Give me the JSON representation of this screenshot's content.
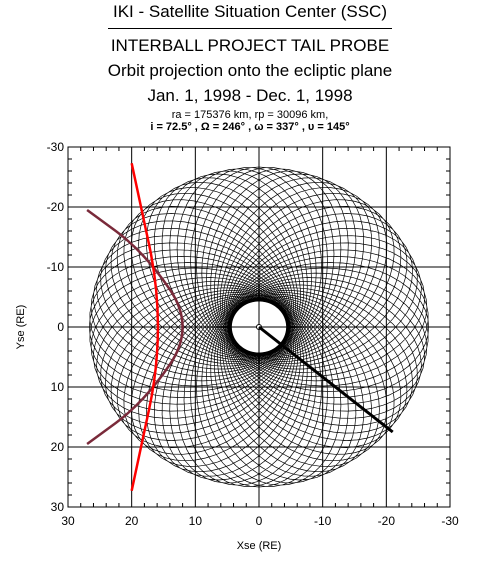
{
  "header": {
    "line1": "IKI - Satellite Situation Center (SSC)",
    "line2": "INTERBALL PROJECT TAIL PROBE",
    "line3": "Orbit projection onto the ecliptic plane",
    "line4": "Jan. 1, 1998 - Dec. 1, 1998",
    "params1": "ra = 175376 km, rp = 30096 km,",
    "params2": "i = 72.5° , Ω = 246° , ω = 337° , υ = 145°"
  },
  "chart_data": {
    "type": "line",
    "xlabel": "Xse (RE)",
    "ylabel": "Yse (RE)",
    "xlim": [
      30,
      -30
    ],
    "ylim": [
      -30,
      30
    ],
    "x_ticks": [
      "30",
      "20",
      "10",
      "0",
      "-10",
      "-20",
      "-30"
    ],
    "y_ticks": [
      "-30",
      "-20",
      "-10",
      "0",
      "10",
      "20",
      "30"
    ],
    "grid": true,
    "colors": {
      "orbit": "#000000",
      "bow_shock": "#ff0000",
      "magnetopause": "#7a2a3a",
      "final_segment": "#000000"
    },
    "series": [
      {
        "kind": "magnetopause",
        "points": [
          [
            27,
            -19.5
          ],
          [
            18,
            -12.5
          ],
          [
            10,
            0
          ],
          [
            18,
            12.5
          ],
          [
            27,
            19.5
          ]
        ]
      },
      {
        "kind": "bow_shock",
        "points": [
          [
            20,
            -27.3
          ],
          [
            14.5,
            0
          ],
          [
            20,
            27.3
          ]
        ]
      },
      {
        "kind": "final_segment",
        "points": [
          [
            0,
            0
          ],
          [
            -21,
            17.5
          ]
        ]
      }
    ]
  }
}
